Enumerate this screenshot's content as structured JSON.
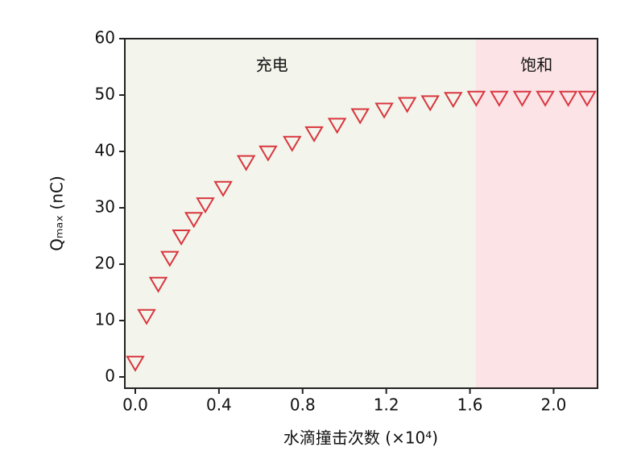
{
  "chart_data": {
    "type": "scatter",
    "xlabel": "水滴撞击次数 (×10⁴)",
    "ylabel": "Qₘₐₓ (nC)",
    "xlim": [
      -0.05,
      2.21
    ],
    "ylim": [
      -2,
      60
    ],
    "xticks": [
      {
        "value": 0,
        "label": "0.0"
      },
      {
        "value": 0.4,
        "label": "0.4"
      },
      {
        "value": 0.8,
        "label": "0.8"
      },
      {
        "value": 1.2,
        "label": "1.2"
      },
      {
        "value": 1.6,
        "label": "1.6"
      },
      {
        "value": 2.0,
        "label": "2.0"
      }
    ],
    "yticks": [
      0,
      10,
      20,
      30,
      40,
      50,
      60
    ],
    "regions": [
      {
        "label": "充电",
        "from": -0.05,
        "to": 1.627,
        "color": "#f3f5ec"
      },
      {
        "label": "饱和",
        "from": 1.627,
        "to": 2.21,
        "color": "#fbe3e6"
      }
    ],
    "series": [
      {
        "color": "#d9363e",
        "x": [
          0,
          0.054,
          0.11,
          0.165,
          0.22,
          0.28,
          0.335,
          0.42,
          0.53,
          0.635,
          0.75,
          0.855,
          0.965,
          1.075,
          1.19,
          1.3,
          1.41,
          1.52,
          1.63,
          1.74,
          1.85,
          1.96,
          2.07,
          2.16
        ],
        "values": [
          2.6,
          10.9,
          16.6,
          21.2,
          25,
          28.1,
          30.7,
          33.6,
          38.2,
          39.9,
          41.6,
          43.3,
          44.8,
          46.5,
          47.5,
          48.5,
          48.8,
          49.4,
          49.6,
          49.6,
          49.6,
          49.6,
          49.6,
          49.6
        ]
      }
    ]
  }
}
